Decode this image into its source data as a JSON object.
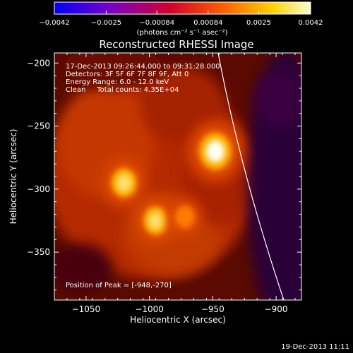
{
  "chart_data": {
    "type": "heatmap",
    "title": "Reconstructed RHESSI Image",
    "xlabel": "Heliocentric X (arcsec)",
    "ylabel": "Heliocentric Y (arcsec)",
    "xlim": [
      -1075,
      -880
    ],
    "ylim": [
      -388,
      -192
    ],
    "xticks": [
      -1050,
      -1000,
      -950,
      -900
    ],
    "yticks": [
      -200,
      -250,
      -300,
      -350
    ],
    "xtick_labels": [
      "−1050",
      "−1000",
      "−950",
      "−900"
    ],
    "ytick_labels": [
      "−200",
      "−250",
      "−300",
      "−350"
    ],
    "colorbar": {
      "ticks": [
        -0.0042,
        -0.0025,
        -0.00084,
        0.00084,
        0.0025,
        0.0042
      ],
      "tick_labels": [
        "−0.0042",
        "−0.0025",
        "−0.00084",
        "0.00084",
        "0.0025",
        "0.0042"
      ],
      "unit": "(photons cm⁻² s⁻¹ asec⁻²)"
    },
    "sources": [
      {
        "x": -948,
        "y": -270,
        "intensity": 1.0
      },
      {
        "x": -1020,
        "y": -295,
        "intensity": 0.62
      },
      {
        "x": -995,
        "y": -325,
        "intensity": 0.58
      },
      {
        "x": -972,
        "y": -322,
        "intensity": 0.32
      }
    ],
    "info_lines": [
      "17-Dec-2013 09:26:44.000 to 09:31:28.000",
      "Detectors: 3F 5F 6F 7F 8F 9F, Att 0",
      "Energy Range: 6.0 - 12.0 keV",
      "Clean     Total counts: 4.35E+04"
    ],
    "peak_label": "Position of Peak = [-948,-270]",
    "timestamp": "19-Dec-2013 11:11"
  }
}
